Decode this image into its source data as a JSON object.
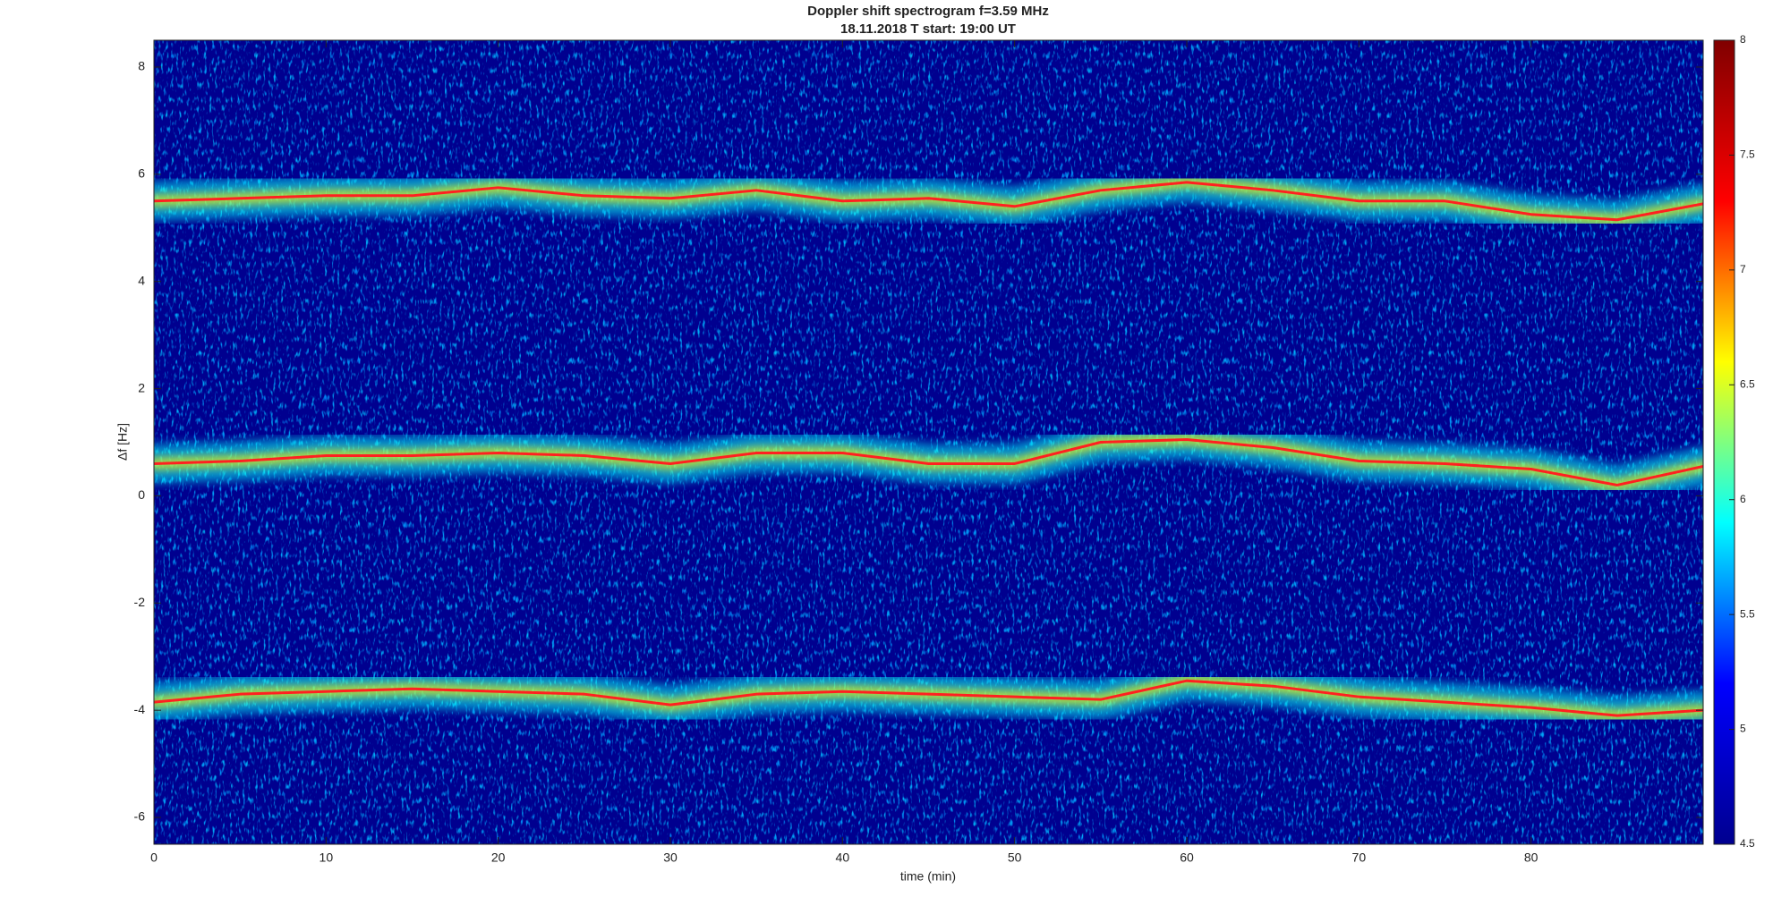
{
  "chart_data": {
    "type": "spectrogram",
    "title": "Doppler shift spectrogram f=3.59 MHz",
    "subtitle": "18.11.2018   T start: 19:00 UT",
    "x_label": "time (min)",
    "y_label": "Δf [Hz]",
    "xlim": [
      0,
      90
    ],
    "xticks": [
      0,
      10,
      20,
      30,
      40,
      50,
      60,
      70,
      80
    ],
    "ylim": [
      -6.5,
      8.5
    ],
    "yticks": [
      -6,
      -4,
      -2,
      0,
      2,
      4,
      6,
      8
    ],
    "clim": [
      4.5,
      8
    ],
    "cticks": [
      4.5,
      5,
      5.5,
      6,
      6.5,
      7,
      7.5,
      8
    ],
    "colormap": [
      "#00008f",
      "#0000ff",
      "#00ffff",
      "#ffff00",
      "#ff0000",
      "#800000"
    ],
    "x": [
      0,
      5,
      10,
      15,
      20,
      25,
      30,
      35,
      40,
      45,
      50,
      55,
      60,
      65,
      70,
      75,
      80,
      85,
      90
    ],
    "series": [
      {
        "color": "#ff2020",
        "values": [
          5.5,
          5.55,
          5.6,
          5.6,
          5.75,
          5.6,
          5.55,
          5.7,
          5.5,
          5.55,
          5.4,
          5.7,
          5.85,
          5.7,
          5.5,
          5.5,
          5.25,
          5.15,
          5.45
        ]
      },
      {
        "color": "#ff2020",
        "values": [
          0.6,
          0.65,
          0.75,
          0.75,
          0.8,
          0.75,
          0.6,
          0.8,
          0.8,
          0.6,
          0.6,
          1.0,
          1.05,
          0.9,
          0.65,
          0.6,
          0.5,
          0.2,
          0.55
        ]
      },
      {
        "color": "#ff2020",
        "values": [
          -3.85,
          -3.7,
          -3.65,
          -3.6,
          -3.65,
          -3.7,
          -3.9,
          -3.7,
          -3.65,
          -3.7,
          -3.75,
          -3.8,
          -3.45,
          -3.55,
          -3.75,
          -3.85,
          -3.95,
          -4.1,
          -4.0
        ]
      }
    ]
  }
}
